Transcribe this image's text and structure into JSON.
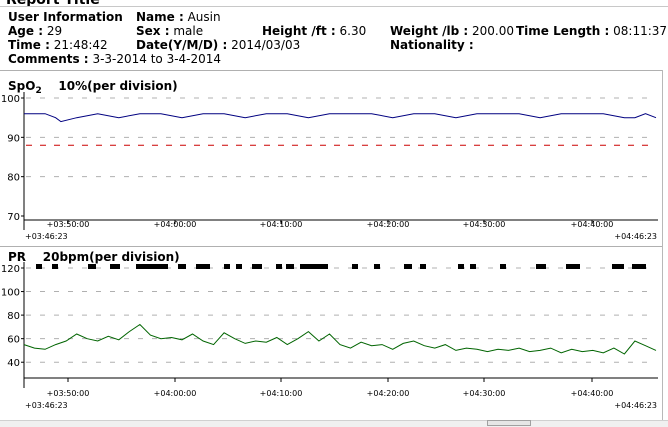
{
  "report_title": "Report Title",
  "user_info": {
    "heading": "User Information",
    "name_label": "Name :",
    "name_value": "Ausin",
    "age_label": "Age :",
    "age_value": "29",
    "sex_label": "Sex :",
    "sex_value": "male",
    "height_label": "Height /ft :",
    "height_value": "6.30",
    "weight_label": "Weight /lb :",
    "weight_value": "200.00",
    "time_length_label": "Time Length :",
    "time_length_value": "08:11:37",
    "time_label": "Time :",
    "time_value": "21:48:42",
    "date_label": "Date(Y/M/D) :",
    "date_value": "2014/03/03",
    "nationality_label": "Nationality :",
    "nationality_value": "",
    "comments_label": "Comments :",
    "comments_value": "3-3-2014  to  3-4-2014"
  },
  "chart_data": [
    {
      "type": "line",
      "title": "SpO2    10%(per division)",
      "title_main": "SpO",
      "title_sub": "2",
      "title_rest": "10%(per division)",
      "ylim": [
        70,
        100
      ],
      "yticks": [
        70,
        80,
        90,
        100
      ],
      "threshold": 88,
      "x_start_label": "+03:46:23",
      "x_end_label": "+04:46:23",
      "xticks": [
        "+03:50:00",
        "+04:00:00",
        "+04:10:00",
        "+04:20:00",
        "+04:30:00",
        "+04:40:00"
      ],
      "x_minutes": [
        0,
        3.62,
        13.62,
        23.62,
        33.62,
        43.62,
        53.62,
        60
      ],
      "series_color": "#000080",
      "threshold_color": "#cc0000",
      "grid": true,
      "series": [
        {
          "x": [
            0,
            2,
            3,
            3.5,
            5,
            7,
            9,
            11,
            13,
            15,
            17,
            19,
            21,
            23,
            25,
            27,
            29,
            31,
            33,
            35,
            37,
            39,
            41,
            43,
            45,
            47,
            49,
            51,
            53,
            55,
            57,
            58,
            59,
            60
          ],
          "values": [
            96,
            96,
            95,
            94,
            95,
            96,
            95,
            96,
            96,
            95,
            96,
            96,
            95,
            96,
            96,
            95,
            96,
            96,
            96,
            95,
            96,
            96,
            95,
            96,
            96,
            96,
            95,
            96,
            96,
            96,
            95,
            95,
            96,
            95
          ]
        }
      ]
    },
    {
      "type": "line",
      "title": "PR    20bpm(per division)",
      "title_main": "PR",
      "title_rest": "20bpm(per division)",
      "ylim": [
        30,
        120
      ],
      "yticks": [
        40,
        60,
        80,
        100,
        120
      ],
      "x_start_label": "+03:46:23",
      "x_end_label": "+04:46:23",
      "xticks": [
        "+03:50:00",
        "+04:00:00",
        "+04:10:00",
        "+04:20:00",
        "+04:30:00",
        "+04:40:00"
      ],
      "series_color": "#006400",
      "grid": true,
      "series": [
        {
          "x": [
            0,
            1,
            2,
            3,
            4,
            5,
            6,
            7,
            8,
            9,
            10,
            11,
            12,
            13,
            14,
            15,
            16,
            17,
            18,
            19,
            20,
            21,
            22,
            23,
            24,
            25,
            26,
            27,
            28,
            29,
            30,
            31,
            32,
            33,
            34,
            35,
            36,
            37,
            38,
            39,
            40,
            41,
            42,
            43,
            44,
            45,
            46,
            47,
            48,
            49,
            50,
            51,
            52,
            53,
            54,
            55,
            56,
            57,
            58,
            59,
            60
          ],
          "values": [
            55,
            52,
            51,
            55,
            58,
            64,
            60,
            58,
            62,
            59,
            66,
            72,
            63,
            60,
            61,
            59,
            64,
            58,
            55,
            65,
            60,
            56,
            58,
            57,
            61,
            55,
            60,
            66,
            58,
            64,
            55,
            52,
            57,
            54,
            55,
            51,
            56,
            58,
            54,
            52,
            55,
            50,
            52,
            51,
            49,
            51,
            50,
            52,
            49,
            50,
            52,
            48,
            51,
            49,
            50,
            48,
            52,
            47,
            58,
            54,
            50
          ]
        }
      ]
    }
  ]
}
